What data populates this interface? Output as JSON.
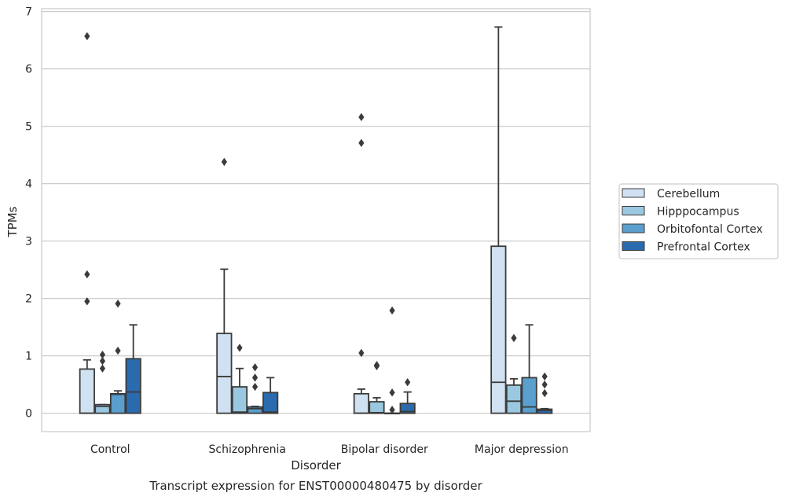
{
  "chart_data": {
    "type": "box",
    "title": "",
    "caption": "Transcript expression for ENST00000480475 by disorder",
    "xlabel": "Disorder",
    "ylabel": "TPMs",
    "ylim": [
      -0.32,
      7.05
    ],
    "yticks": [
      0,
      1,
      2,
      3,
      4,
      5,
      6,
      7
    ],
    "grid": "horizontal",
    "legend_position": "right",
    "categories": [
      "Control",
      "Schizophrenia",
      "Bipolar disorder",
      "Major depression"
    ],
    "series": [
      {
        "name": "Cerebellum",
        "color": "#d0e1f2",
        "boxes": [
          {
            "q1": 0,
            "median": 0.0,
            "q3": 0.77,
            "whisker_low": 0,
            "whisker_high": 0.93,
            "outliers": [
              1.95,
              2.42,
              6.57
            ]
          },
          {
            "q1": 0,
            "median": 0.64,
            "q3": 1.39,
            "whisker_low": 0,
            "whisker_high": 2.51,
            "outliers": [
              4.38
            ]
          },
          {
            "q1": 0,
            "median": 0.0,
            "q3": 0.34,
            "whisker_low": 0,
            "whisker_high": 0.42,
            "outliers": [
              1.05,
              4.71,
              5.16
            ]
          },
          {
            "q1": 0,
            "median": 0.54,
            "q3": 2.91,
            "whisker_low": 0,
            "whisker_high": 6.73,
            "outliers": []
          }
        ]
      },
      {
        "name": "Hipppocampus",
        "color": "#9ac8e0",
        "boxes": [
          {
            "q1": 0,
            "median": 0.12,
            "q3": 0.15,
            "whisker_low": 0,
            "whisker_high": 0.15,
            "outliers": [
              0.78,
              0.91,
              1.02
            ]
          },
          {
            "q1": 0,
            "median": 0.02,
            "q3": 0.46,
            "whisker_low": 0,
            "whisker_high": 0.78,
            "outliers": [
              1.14
            ]
          },
          {
            "q1": 0,
            "median": 0.01,
            "q3": 0.2,
            "whisker_low": 0,
            "whisker_high": 0.27,
            "outliers": [
              0.82,
              0.84
            ]
          },
          {
            "q1": 0,
            "median": 0.21,
            "q3": 0.49,
            "whisker_low": 0,
            "whisker_high": 0.6,
            "outliers": [
              1.31
            ]
          }
        ]
      },
      {
        "name": "Orbitofontal Cortex",
        "color": "#5a9fcd",
        "boxes": [
          {
            "q1": 0,
            "median": 0.33,
            "q3": 0.34,
            "whisker_low": 0,
            "whisker_high": 0.39,
            "outliers": [
              1.09,
              1.91
            ]
          },
          {
            "q1": 0,
            "median": 0.08,
            "q3": 0.11,
            "whisker_low": 0,
            "whisker_high": 0.12,
            "outliers": [
              0.46,
              0.62,
              0.8
            ]
          },
          {
            "q1": 0,
            "median": 0.0,
            "q3": 0.0,
            "whisker_low": 0,
            "whisker_high": 0.0,
            "outliers": [
              0.06,
              0.36,
              1.79
            ]
          },
          {
            "q1": 0,
            "median": 0.11,
            "q3": 0.62,
            "whisker_low": 0,
            "whisker_high": 1.54,
            "outliers": []
          }
        ]
      },
      {
        "name": "Prefrontal Cortex",
        "color": "#2a6bae",
        "boxes": [
          {
            "q1": 0,
            "median": 0.37,
            "q3": 0.95,
            "whisker_low": 0,
            "whisker_high": 1.54,
            "outliers": []
          },
          {
            "q1": 0,
            "median": 0.02,
            "q3": 0.36,
            "whisker_low": 0,
            "whisker_high": 0.62,
            "outliers": []
          },
          {
            "q1": 0,
            "median": 0.03,
            "q3": 0.17,
            "whisker_low": 0,
            "whisker_high": 0.37,
            "outliers": [
              0.54
            ]
          },
          {
            "q1": 0,
            "median": 0.05,
            "q3": 0.07,
            "whisker_low": 0,
            "whisker_high": 0.08,
            "outliers": [
              0.35,
              0.5,
              0.64
            ]
          }
        ]
      }
    ]
  }
}
